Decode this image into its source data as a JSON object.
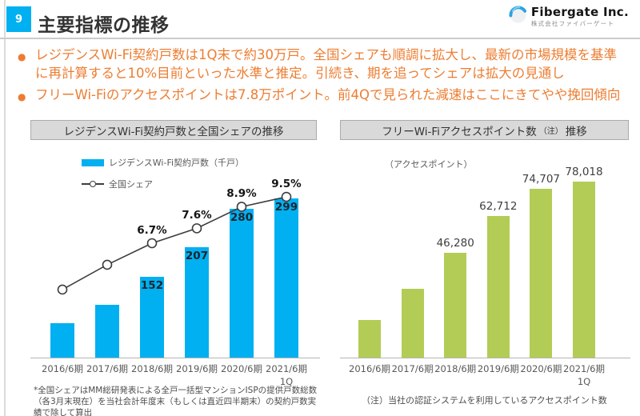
{
  "page": {
    "number": "9",
    "title": "主要指標の推移"
  },
  "logo": {
    "company": "Fibergate Inc.",
    "company_ja": "株式会社ファイバーゲート"
  },
  "bullets": [
    {
      "text": "レジデンスWi-Fi契約戸数は1Q末で約30万戸。全国シェアも順調に拡大し、最新の市場規模を基準に再計算すると10%目前といった水準と推定。引続き、期を追ってシェアは拡大の見通し"
    },
    {
      "text": "フリーWi-Fiのアクセスポイントは7.8万ポイント。前4Qで見られた減速はここにきてやや挽回傾向"
    }
  ],
  "colors": {
    "accent_cyan": "#00b0f0",
    "accent_green": "#b2cc55",
    "bullet_orange": "#ed7d31",
    "line_dark": "#3d3d3d"
  },
  "chart_data": [
    {
      "type": "bar+line",
      "title": "レジデンスWi-Fi契約戸数と全国シェアの推移",
      "categories": [
        "2016/6期",
        "2017/6期",
        "2018/6期",
        "2019/6期",
        "2020/6期",
        "2021/6期"
      ],
      "last_category_note": "1Q",
      "series": [
        {
          "name": "レジデンスWi-Fi契約戸数（千戸）",
          "type": "bar",
          "color": "#00b0f0",
          "values": [
            64,
            99,
            152,
            207,
            280,
            299
          ],
          "labels": [
            "",
            "",
            "152",
            "207",
            "280",
            "299"
          ]
        },
        {
          "name": "全国シェア",
          "type": "line",
          "color": "#3d3d3d",
          "values": [
            3.9,
            5.4,
            6.7,
            7.6,
            8.9,
            9.5
          ],
          "labels": [
            "",
            "",
            "6.7%",
            "7.6%",
            "8.9%",
            "9.5%"
          ]
        }
      ],
      "footnote": "*全国シェアはMM総研発表による全戸一括型マンションISPの提供戸数総数（各3月末現在）を当社会計年度末（もしくは直近四半期末）の契約戸数実績で除して算出"
    },
    {
      "type": "bar",
      "title_main": "フリーWi-Fiアクセスポイント数",
      "title_note": "（注）",
      "title_suffix": "推移",
      "unit_label": "（アクセスポイント）",
      "categories": [
        "2016/6期",
        "2017/6期",
        "2018/6期",
        "2019/6期",
        "2020/6期",
        "2021/6期"
      ],
      "last_category_note": "1Q",
      "color": "#b2cc55",
      "values": [
        16700,
        30500,
        46280,
        62712,
        74707,
        78018
      ],
      "labels": [
        "",
        "",
        "46,280",
        "62,712",
        "74,707",
        "78,018"
      ],
      "footnote": "（注）当社の認証システムを利用しているアクセスポイント数"
    }
  ]
}
